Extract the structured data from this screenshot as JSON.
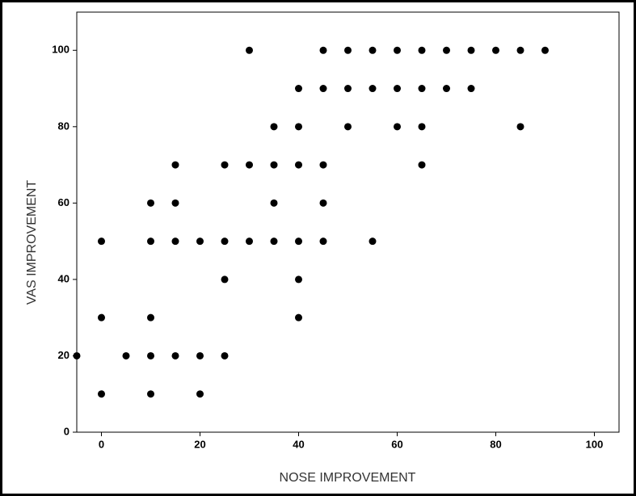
{
  "chart_data": {
    "type": "scatter",
    "x_label": "NOSE IMPROVEMENT",
    "y_label": "VAS IMPROVEMENT",
    "color": "#000000",
    "xlim": [
      -5,
      105
    ],
    "xticks": [
      0,
      20,
      40,
      60,
      80,
      100
    ],
    "ylim": [
      0,
      110
    ],
    "yticks": [
      0,
      20,
      40,
      60,
      80,
      100
    ],
    "x": [
      -5,
      0,
      0,
      0,
      5,
      10,
      10,
      10,
      10,
      10,
      15,
      15,
      15,
      15,
      20,
      20,
      20,
      25,
      25,
      25,
      25,
      30,
      30,
      30,
      35,
      35,
      35,
      35,
      40,
      40,
      40,
      40,
      40,
      40,
      45,
      45,
      45,
      45,
      45,
      50,
      50,
      50,
      55,
      55,
      55,
      60,
      60,
      60,
      65,
      65,
      65,
      65,
      70,
      70,
      75,
      75,
      80,
      85,
      85,
      90
    ],
    "values": [
      20,
      50,
      30,
      10,
      20,
      60,
      50,
      30,
      20,
      10,
      70,
      60,
      50,
      20,
      50,
      20,
      10,
      70,
      50,
      40,
      20,
      100,
      70,
      50,
      80,
      70,
      60,
      50,
      90,
      80,
      70,
      50,
      40,
      30,
      100,
      90,
      70,
      60,
      50,
      100,
      90,
      80,
      100,
      90,
      50,
      100,
      90,
      80,
      100,
      90,
      80,
      70,
      100,
      90,
      100,
      90,
      100,
      100,
      80,
      100
    ]
  }
}
